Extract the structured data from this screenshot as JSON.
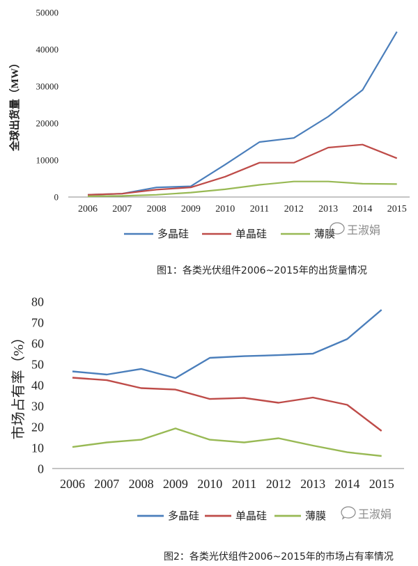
{
  "colors": {
    "poly": "#4a7ebb",
    "mono": "#be4b48",
    "film": "#98b954",
    "axis": "#888888"
  },
  "watermark": "王淑娟",
  "chart_data": [
    {
      "type": "line",
      "title": "",
      "caption": "图1：各类光伏组件2006~2015年的出货量情况",
      "ylabel": "全球出货量（MW）",
      "xlabel": "",
      "ylim": [
        0,
        50000
      ],
      "yticks": [
        0,
        10000,
        20000,
        30000,
        40000,
        50000
      ],
      "grid": false,
      "legend_position": "bottom",
      "categories": [
        "2006",
        "2007",
        "2008",
        "2009",
        "2010",
        "2011",
        "2012",
        "2013",
        "2014",
        "2015"
      ],
      "series": [
        {
          "name": "多晶硅",
          "color_key": "poly",
          "values": [
            600,
            900,
            2600,
            2900,
            8800,
            14900,
            16000,
            21800,
            29000,
            44800
          ]
        },
        {
          "name": "单晶硅",
          "color_key": "mono",
          "values": [
            600,
            900,
            2000,
            2600,
            5500,
            9300,
            9300,
            13400,
            14200,
            10500
          ]
        },
        {
          "name": "薄膜",
          "color_key": "film",
          "values": [
            200,
            300,
            600,
            1200,
            2100,
            3300,
            4200,
            4200,
            3600,
            3500
          ]
        }
      ]
    },
    {
      "type": "line",
      "title": "",
      "caption": "图2：各类光伏组件2006~2015年的市场占有率情况",
      "ylabel": "市场占有率（%）",
      "xlabel": "",
      "ylim": [
        0,
        80
      ],
      "yticks": [
        0,
        10,
        20,
        30,
        40,
        50,
        60,
        70,
        80
      ],
      "grid": false,
      "legend_position": "bottom",
      "categories": [
        "2006",
        "2007",
        "2008",
        "2009",
        "2010",
        "2011",
        "2012",
        "2013",
        "2014",
        "2015"
      ],
      "series": [
        {
          "name": "多晶硅",
          "color_key": "poly",
          "values": [
            46.5,
            45,
            47.7,
            43.3,
            53,
            53.8,
            54.3,
            55,
            62,
            76
          ]
        },
        {
          "name": "单晶硅",
          "color_key": "mono",
          "values": [
            43.5,
            42.3,
            38.5,
            37.8,
            33.3,
            33.8,
            31.5,
            34,
            30.5,
            18
          ]
        },
        {
          "name": "薄膜",
          "color_key": "film",
          "values": [
            10.3,
            12.5,
            13.8,
            19.2,
            13.8,
            12.5,
            14.5,
            11,
            7.8,
            6
          ]
        }
      ]
    }
  ]
}
